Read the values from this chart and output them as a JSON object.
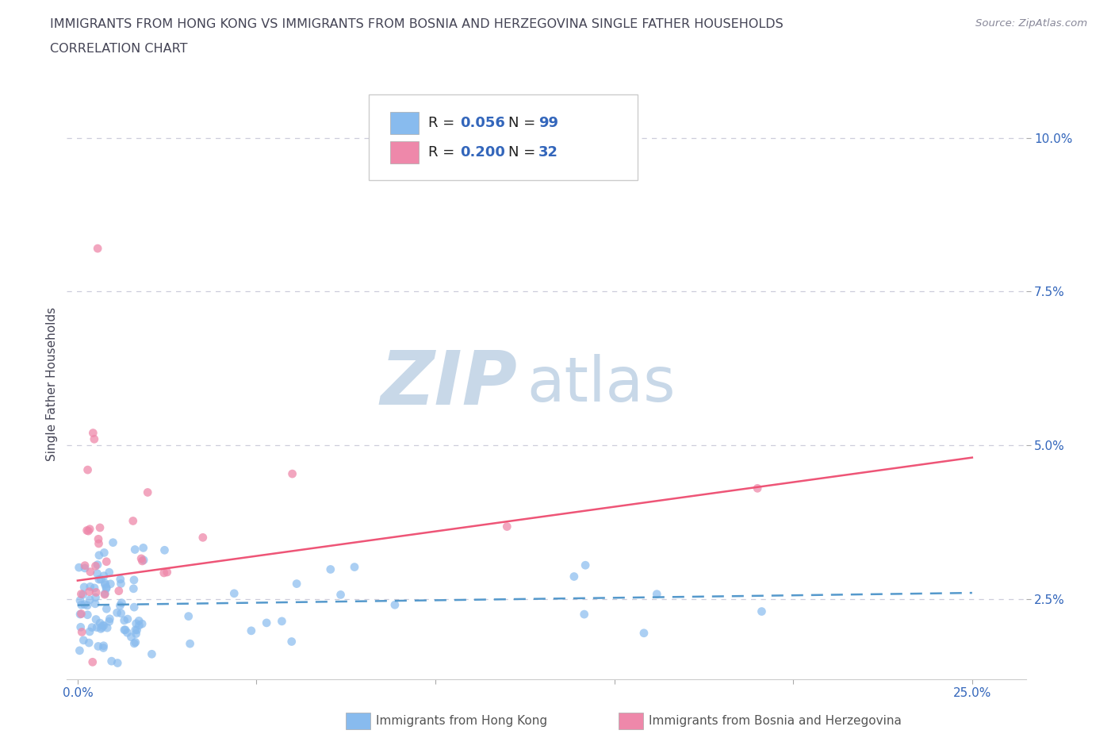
{
  "title_line1": "IMMIGRANTS FROM HONG KONG VS IMMIGRANTS FROM BOSNIA AND HERZEGOVINA SINGLE FATHER HOUSEHOLDS",
  "title_line2": "CORRELATION CHART",
  "source_text": "Source: ZipAtlas.com",
  "ylabel": "Single Father Households",
  "watermark_zip": "ZIP",
  "watermark_atlas": "atlas",
  "legend_entries": [
    {
      "label": "Immigrants from Hong Kong",
      "R": "0.056",
      "N": "99"
    },
    {
      "label": "Immigrants from Bosnia and Herzegovina",
      "R": "0.200",
      "N": "32"
    }
  ],
  "hk_trend_x": [
    0.0,
    0.25
  ],
  "hk_trend_y": [
    0.024,
    0.026
  ],
  "bos_trend_x": [
    0.0,
    0.25
  ],
  "bos_trend_y": [
    0.028,
    0.048
  ],
  "xlim": [
    -0.003,
    0.265
  ],
  "ylim": [
    0.012,
    0.108
  ],
  "xticks": [
    0.0,
    0.05,
    0.1,
    0.15,
    0.2,
    0.25
  ],
  "xtick_labels": [
    "0.0%",
    "",
    "",
    "",
    "",
    "25.0%"
  ],
  "yticks": [
    0.025,
    0.05,
    0.075,
    0.1
  ],
  "ytick_labels": [
    "2.5%",
    "5.0%",
    "7.5%",
    "10.0%"
  ],
  "grid_color": "#c8c8d8",
  "bg_color": "#ffffff",
  "title_color": "#444455",
  "axis_color": "#3366bb",
  "watermark_color1": "#c8d8e8",
  "watermark_color2": "#c8d8e8",
  "hk_point_color": "#88bbee",
  "bos_point_color": "#ee88aa",
  "hk_trend_color": "#5599cc",
  "bos_trend_color": "#ee5577",
  "legend_box_color": "#aaaaaa",
  "bottom_label_color": "#555555"
}
